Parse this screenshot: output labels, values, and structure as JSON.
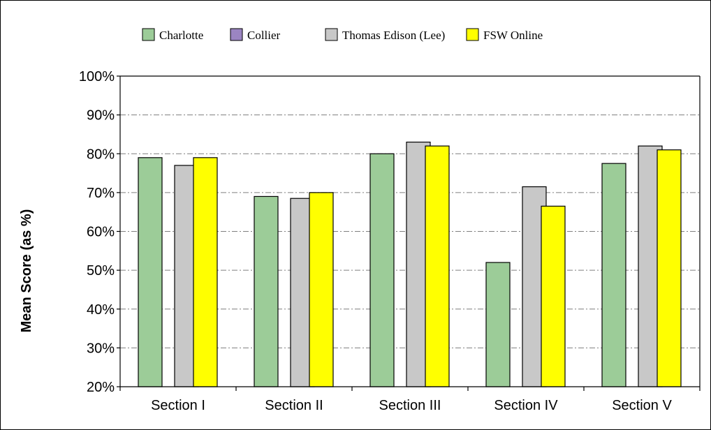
{
  "chart_data": {
    "type": "bar",
    "categories": [
      "Section I",
      "Section II",
      "Section III",
      "Section IV",
      "Section V"
    ],
    "series": [
      {
        "name": "Charlotte",
        "color": "#9ccc98",
        "values": [
          79,
          69,
          80,
          52,
          77.5
        ]
      },
      {
        "name": "Collier",
        "color": "#9b85c2",
        "values": [
          null,
          null,
          null,
          null,
          null
        ]
      },
      {
        "name": "Thomas Edison (Lee)",
        "color": "#c8c8c8",
        "values": [
          77,
          68.5,
          83,
          71.5,
          82
        ]
      },
      {
        "name": "FSW Online",
        "color": "#ffff00",
        "values": [
          79,
          70,
          82,
          66.5,
          81
        ]
      }
    ],
    "yticks": [
      "20%",
      "30%",
      "40%",
      "50%",
      "60%",
      "70%",
      "80%",
      "90%",
      "100%"
    ],
    "ylim": [
      20,
      100
    ],
    "ystep": 10,
    "ylabel": "Mean Score (as %)",
    "xlabel": "",
    "grid": true,
    "legend": "top"
  }
}
